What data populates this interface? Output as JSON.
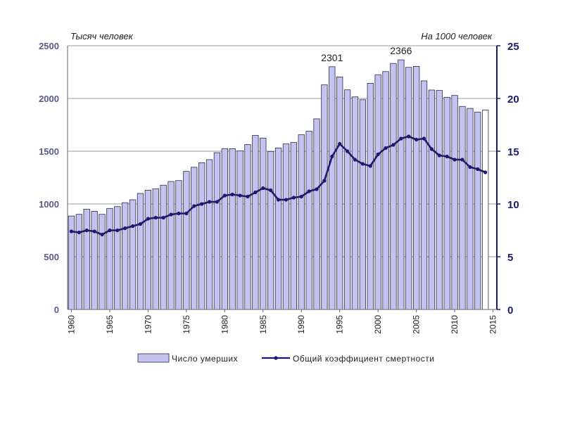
{
  "chart_data": {
    "type": "bar",
    "left_axis_title": "Тысяч человек",
    "right_axis_title": "На 1000 человек",
    "x": [
      1960,
      1961,
      1962,
      1963,
      1964,
      1965,
      1966,
      1967,
      1968,
      1969,
      1970,
      1971,
      1972,
      1973,
      1974,
      1975,
      1976,
      1977,
      1978,
      1979,
      1980,
      1981,
      1982,
      1983,
      1984,
      1985,
      1986,
      1987,
      1988,
      1989,
      1990,
      1991,
      1992,
      1993,
      1994,
      1995,
      1996,
      1997,
      1998,
      1999,
      2000,
      2001,
      2002,
      2003,
      2004,
      2005,
      2006,
      2007,
      2008,
      2009,
      2010,
      2011,
      2012,
      2013,
      2014
    ],
    "x_ticks": [
      "1960",
      "1965",
      "1970",
      "1975",
      "1980",
      "1985",
      "1990",
      "1995",
      "2000",
      "2005",
      "2010",
      "2015"
    ],
    "x_range": [
      1960,
      2015
    ],
    "y_left_range": [
      0,
      2500
    ],
    "y_left_ticks": [
      "0",
      "500",
      "1000",
      "1500",
      "2000",
      "2500"
    ],
    "y_right_range": [
      0,
      25
    ],
    "y_right_ticks": [
      "0",
      "5",
      "10",
      "15",
      "20",
      "25"
    ],
    "grid": true,
    "legend_position": "bottom",
    "series": [
      {
        "name": "Число умерших",
        "type": "bar",
        "axis": "left",
        "color": "#c3c3ef",
        "values": [
          886,
          902,
          950,
          930,
          902,
          958,
          975,
          1012,
          1040,
          1100,
          1131,
          1143,
          1178,
          1213,
          1222,
          1309,
          1348,
          1391,
          1420,
          1486,
          1525,
          1524,
          1504,
          1563,
          1650,
          1625,
          1498,
          1531,
          1569,
          1583,
          1656,
          1690,
          1807,
          2129,
          2301,
          2204,
          2082,
          2015,
          1988,
          2144,
          2225,
          2255,
          2332,
          2366,
          2295,
          2304,
          2167,
          2080,
          2076,
          2011,
          2029,
          1925,
          1906,
          1871,
          1890
        ],
        "highlight_last_color": "#ffffff"
      },
      {
        "name": "Общий коэффициент смертности",
        "type": "line",
        "axis": "right",
        "color": "#1b1b6e",
        "values": [
          7.4,
          7.3,
          7.5,
          7.4,
          7.1,
          7.5,
          7.5,
          7.7,
          7.9,
          8.1,
          8.6,
          8.7,
          8.7,
          9.0,
          9.1,
          9.1,
          9.8,
          10.0,
          10.2,
          10.2,
          10.8,
          10.9,
          10.8,
          10.7,
          11.1,
          11.5,
          11.3,
          10.4,
          10.4,
          10.6,
          10.7,
          11.2,
          11.4,
          12.2,
          14.5,
          15.7,
          15.0,
          14.2,
          13.8,
          13.6,
          14.7,
          15.3,
          15.6,
          16.2,
          16.4,
          16.1,
          16.2,
          15.2,
          14.6,
          14.5,
          14.2,
          14.2,
          13.5,
          13.3,
          13.0
        ]
      }
    ],
    "annotations": [
      {
        "text": "2301",
        "x": 1994
      },
      {
        "text": "2366",
        "x": 2003
      }
    ]
  }
}
